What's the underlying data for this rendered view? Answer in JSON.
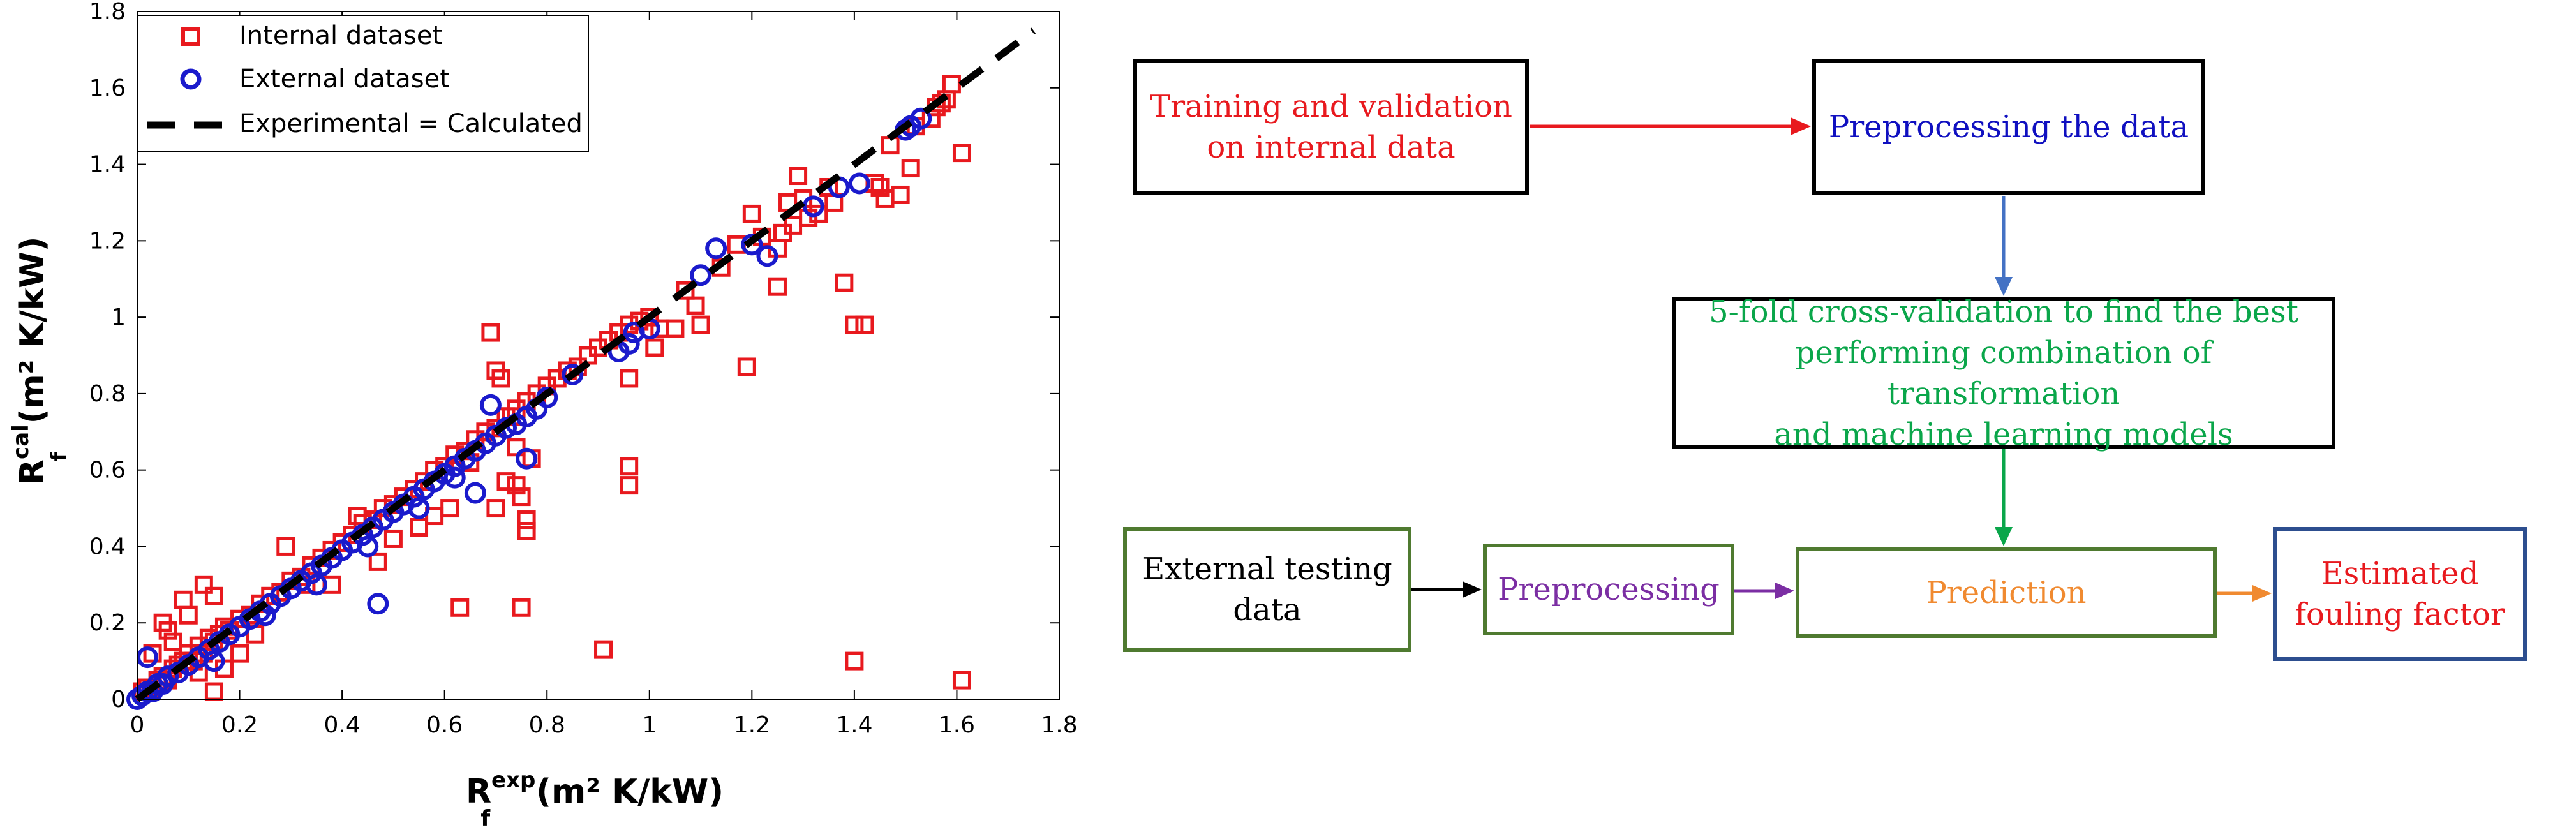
{
  "chart_data": {
    "type": "scatter",
    "title": "",
    "xlabel": {
      "base": "R",
      "sub": "f",
      "sup": "exp",
      "unit": "(m² K/kW)"
    },
    "ylabel": {
      "base": "R",
      "sub": "f",
      "sup": "cal",
      "unit": "(m² K/kW)"
    },
    "xlim": [
      0,
      1.8
    ],
    "ylim": [
      0,
      1.8
    ],
    "xticks": [
      "0",
      "0.2",
      "0.4",
      "0.6",
      "0.8",
      "1",
      "1.2",
      "1.4",
      "1.6",
      "1.8"
    ],
    "yticks": [
      "0",
      "0.2",
      "0.4",
      "0.6",
      "0.8",
      "1",
      "1.2",
      "1.4",
      "1.6",
      "1.8"
    ],
    "grid": false,
    "legend_position": "top-left",
    "series": [
      {
        "name": "Internal dataset",
        "marker": "square",
        "color": "#e8191e",
        "points": [
          [
            0.01,
            0.02
          ],
          [
            0.02,
            0.03
          ],
          [
            0.03,
            0.03
          ],
          [
            0.04,
            0.05
          ],
          [
            0.05,
            0.06
          ],
          [
            0.06,
            0.05
          ],
          [
            0.07,
            0.08
          ],
          [
            0.08,
            0.09
          ],
          [
            0.09,
            0.1
          ],
          [
            0.1,
            0.12
          ],
          [
            0.11,
            0.1
          ],
          [
            0.12,
            0.14
          ],
          [
            0.13,
            0.12
          ],
          [
            0.14,
            0.16
          ],
          [
            0.15,
            0.15
          ],
          [
            0.16,
            0.17
          ],
          [
            0.17,
            0.19
          ],
          [
            0.18,
            0.18
          ],
          [
            0.2,
            0.21
          ],
          [
            0.22,
            0.22
          ],
          [
            0.24,
            0.25
          ],
          [
            0.26,
            0.27
          ],
          [
            0.28,
            0.28
          ],
          [
            0.3,
            0.31
          ],
          [
            0.32,
            0.32
          ],
          [
            0.34,
            0.35
          ],
          [
            0.36,
            0.37
          ],
          [
            0.38,
            0.39
          ],
          [
            0.4,
            0.41
          ],
          [
            0.42,
            0.43
          ],
          [
            0.44,
            0.46
          ],
          [
            0.46,
            0.47
          ],
          [
            0.48,
            0.5
          ],
          [
            0.5,
            0.51
          ],
          [
            0.52,
            0.53
          ],
          [
            0.54,
            0.55
          ],
          [
            0.56,
            0.57
          ],
          [
            0.58,
            0.6
          ],
          [
            0.6,
            0.61
          ],
          [
            0.62,
            0.64
          ],
          [
            0.64,
            0.65
          ],
          [
            0.66,
            0.68
          ],
          [
            0.68,
            0.7
          ],
          [
            0.7,
            0.71
          ],
          [
            0.72,
            0.74
          ],
          [
            0.74,
            0.76
          ],
          [
            0.76,
            0.78
          ],
          [
            0.78,
            0.8
          ],
          [
            0.8,
            0.82
          ],
          [
            0.82,
            0.84
          ],
          [
            0.84,
            0.86
          ],
          [
            0.86,
            0.87
          ],
          [
            0.88,
            0.9
          ],
          [
            0.9,
            0.92
          ],
          [
            0.92,
            0.94
          ],
          [
            0.94,
            0.96
          ],
          [
            0.96,
            0.98
          ],
          [
            0.98,
            0.99
          ],
          [
            1.0,
            1.0
          ],
          [
            1.02,
            0.97
          ],
          [
            0.05,
            0.2
          ],
          [
            0.06,
            0.18
          ],
          [
            0.09,
            0.26
          ],
          [
            0.13,
            0.3
          ],
          [
            0.15,
            0.27
          ],
          [
            0.1,
            0.22
          ],
          [
            0.03,
            0.12
          ],
          [
            0.07,
            0.15
          ],
          [
            0.12,
            0.07
          ],
          [
            0.15,
            0.02
          ],
          [
            0.17,
            0.08
          ],
          [
            0.2,
            0.12
          ],
          [
            0.23,
            0.17
          ],
          [
            0.29,
            0.4
          ],
          [
            0.33,
            0.3
          ],
          [
            0.38,
            0.3
          ],
          [
            0.43,
            0.48
          ],
          [
            0.47,
            0.36
          ],
          [
            0.5,
            0.42
          ],
          [
            0.55,
            0.45
          ],
          [
            0.58,
            0.48
          ],
          [
            0.61,
            0.5
          ],
          [
            0.63,
            0.24
          ],
          [
            0.65,
            0.62
          ],
          [
            0.69,
            0.96
          ],
          [
            0.7,
            0.86
          ],
          [
            0.71,
            0.84
          ],
          [
            0.73,
            0.74
          ],
          [
            0.74,
            0.56
          ],
          [
            0.75,
            0.53
          ],
          [
            0.76,
            0.47
          ],
          [
            0.76,
            0.44
          ],
          [
            0.75,
            0.24
          ],
          [
            0.72,
            0.57
          ],
          [
            0.7,
            0.5
          ],
          [
            0.77,
            0.63
          ],
          [
            0.74,
            0.66
          ],
          [
            0.91,
            0.13
          ],
          [
            0.96,
            0.84
          ],
          [
            0.96,
            0.61
          ],
          [
            0.96,
            0.56
          ],
          [
            1.01,
            0.92
          ],
          [
            1.05,
            0.97
          ],
          [
            1.07,
            1.07
          ],
          [
            1.09,
            1.03
          ],
          [
            1.1,
            0.98
          ],
          [
            1.14,
            1.13
          ],
          [
            1.17,
            1.19
          ],
          [
            1.19,
            0.87
          ],
          [
            1.22,
            1.21
          ],
          [
            1.25,
            1.18
          ],
          [
            1.25,
            1.08
          ],
          [
            1.26,
            1.22
          ],
          [
            1.28,
            1.24
          ],
          [
            1.29,
            1.37
          ],
          [
            1.3,
            1.31
          ],
          [
            1.31,
            1.26
          ],
          [
            1.33,
            1.27
          ],
          [
            1.36,
            1.3
          ],
          [
            1.38,
            1.09
          ],
          [
            1.4,
            0.98
          ],
          [
            1.42,
            0.98
          ],
          [
            1.4,
            0.1
          ],
          [
            1.44,
            1.35
          ],
          [
            1.45,
            1.34
          ],
          [
            1.46,
            1.31
          ],
          [
            1.49,
            1.32
          ],
          [
            1.51,
            1.39
          ],
          [
            1.52,
            1.5
          ],
          [
            1.55,
            1.52
          ],
          [
            1.56,
            1.55
          ],
          [
            1.57,
            1.56
          ],
          [
            1.58,
            1.57
          ],
          [
            1.59,
            1.61
          ],
          [
            1.61,
            1.43
          ],
          [
            1.61,
            0.05
          ],
          [
            1.2,
            1.27
          ],
          [
            1.27,
            1.3
          ],
          [
            1.35,
            1.34
          ],
          [
            1.47,
            1.45
          ]
        ]
      },
      {
        "name": "External dataset",
        "marker": "circle",
        "color": "#1a1acc",
        "points": [
          [
            0.0,
            0.0
          ],
          [
            0.01,
            0.01
          ],
          [
            0.02,
            0.02
          ],
          [
            0.03,
            0.02
          ],
          [
            0.04,
            0.04
          ],
          [
            0.05,
            0.04
          ],
          [
            0.06,
            0.06
          ],
          [
            0.08,
            0.07
          ],
          [
            0.1,
            0.09
          ],
          [
            0.12,
            0.11
          ],
          [
            0.14,
            0.13
          ],
          [
            0.16,
            0.15
          ],
          [
            0.18,
            0.17
          ],
          [
            0.2,
            0.19
          ],
          [
            0.22,
            0.21
          ],
          [
            0.24,
            0.23
          ],
          [
            0.26,
            0.25
          ],
          [
            0.28,
            0.27
          ],
          [
            0.3,
            0.29
          ],
          [
            0.32,
            0.31
          ],
          [
            0.34,
            0.33
          ],
          [
            0.36,
            0.35
          ],
          [
            0.38,
            0.37
          ],
          [
            0.4,
            0.39
          ],
          [
            0.42,
            0.41
          ],
          [
            0.44,
            0.43
          ],
          [
            0.46,
            0.45
          ],
          [
            0.48,
            0.47
          ],
          [
            0.5,
            0.49
          ],
          [
            0.52,
            0.51
          ],
          [
            0.54,
            0.53
          ],
          [
            0.56,
            0.55
          ],
          [
            0.58,
            0.57
          ],
          [
            0.6,
            0.59
          ],
          [
            0.62,
            0.61
          ],
          [
            0.64,
            0.63
          ],
          [
            0.66,
            0.65
          ],
          [
            0.68,
            0.67
          ],
          [
            0.7,
            0.69
          ],
          [
            0.72,
            0.71
          ],
          [
            0.74,
            0.72
          ],
          [
            0.76,
            0.74
          ],
          [
            0.78,
            0.76
          ],
          [
            0.8,
            0.79
          ],
          [
            0.02,
            0.11
          ],
          [
            0.47,
            0.25
          ],
          [
            0.66,
            0.54
          ],
          [
            0.69,
            0.77
          ],
          [
            0.76,
            0.63
          ],
          [
            0.85,
            0.85
          ],
          [
            0.94,
            0.91
          ],
          [
            0.96,
            0.93
          ],
          [
            0.97,
            0.96
          ],
          [
            1.0,
            0.97
          ],
          [
            1.1,
            1.11
          ],
          [
            1.13,
            1.18
          ],
          [
            1.2,
            1.19
          ],
          [
            1.23,
            1.16
          ],
          [
            1.32,
            1.29
          ],
          [
            1.37,
            1.34
          ],
          [
            1.41,
            1.35
          ],
          [
            1.5,
            1.49
          ],
          [
            1.51,
            1.5
          ],
          [
            1.53,
            1.52
          ],
          [
            0.15,
            0.1
          ],
          [
            0.25,
            0.22
          ],
          [
            0.35,
            0.3
          ],
          [
            0.45,
            0.4
          ],
          [
            0.55,
            0.5
          ],
          [
            0.62,
            0.58
          ]
        ]
      },
      {
        "name": "Experimental = Calculated",
        "style": "dashed-line",
        "color": "#000000",
        "points": [
          [
            0,
            0
          ],
          [
            1.75,
            1.75
          ]
        ]
      }
    ]
  },
  "flowchart": {
    "training": {
      "text": "Training and validation\non internal data",
      "color": "#e8191e"
    },
    "preprocess_data": {
      "text": "Preprocessing the data",
      "color": "#1010c0"
    },
    "cross_validation": {
      "text": "5-fold cross-validation to find the best\nperforming combination of transformation\nand machine learning models",
      "color": "#0aa64a"
    },
    "external_testing": {
      "text": "External testing\ndata",
      "color": "#000000"
    },
    "preprocessing": {
      "text": "Preprocessing",
      "color": "#7b2ea3"
    },
    "prediction": {
      "text": "Prediction",
      "color": "#f08a30"
    },
    "estimated": {
      "text": "Estimated\nfouling factor",
      "color": "#e8191e"
    },
    "colors": {
      "black_border": "#000000",
      "green_border": "#4f7a30",
      "blue_border": "#2d4e8f",
      "arrow_red": "#e8191e",
      "arrow_blue": "#4472c4",
      "arrow_green": "#0aa64a",
      "arrow_black": "#000000",
      "arrow_purple": "#7b2ea3",
      "arrow_orange": "#f08a30"
    }
  }
}
